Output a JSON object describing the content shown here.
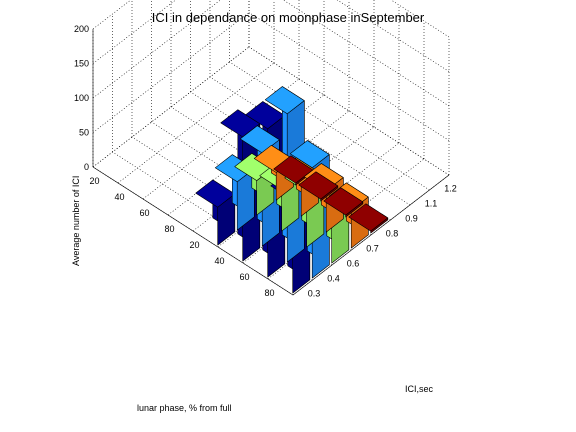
{
  "chart_data": {
    "type": "bar3d",
    "title": "ICI in dependance on moonphase inSeptember",
    "xlabel": "lunar phase, % from full",
    "ylabel": "ICI,sec",
    "zlabel": "Average number of ICI",
    "x_categories": [
      "80",
      "60",
      "40",
      "20",
      "80",
      "60",
      "40",
      "20"
    ],
    "y_categories": [
      "0.3",
      "0.4",
      "0.6",
      "0.7",
      "0.8",
      "0.9",
      "1.1",
      "1.2"
    ],
    "zticks": [
      0,
      50,
      100,
      150,
      200
    ],
    "zlim": [
      0,
      200
    ],
    "grid": true,
    "series": [
      {
        "color": "#00008b",
        "values": [
          135,
          215,
          180,
          55,
          0,
          0,
          0,
          0
        ]
      },
      {
        "color": "#1e90ff",
        "values": [
          160,
          215,
          135,
          70,
          0,
          0,
          0,
          0
        ]
      },
      {
        "color": "#90ee60",
        "values": [
          85,
          80,
          60,
          50,
          0,
          0,
          0,
          0
        ]
      },
      {
        "color": "#ff7f14",
        "values": [
          55,
          60,
          45,
          40,
          0,
          0,
          0,
          0
        ]
      },
      {
        "color": "#800000",
        "values": [
          3,
          3,
          3,
          3,
          0,
          0,
          0,
          0
        ]
      }
    ]
  }
}
